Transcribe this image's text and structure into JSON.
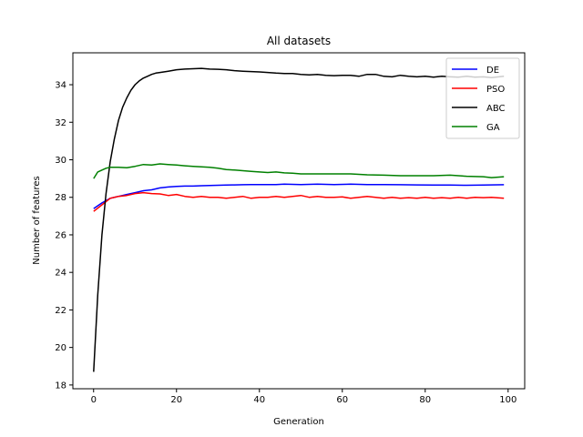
{
  "chart_data": {
    "type": "line",
    "title": "All datasets",
    "xlabel": "Generation",
    "ylabel": "Number of features",
    "xlim": [
      -5,
      104
    ],
    "ylim": [
      17.8,
      35.7
    ],
    "xticks": [
      0,
      20,
      40,
      60,
      80,
      100
    ],
    "yticks": [
      18,
      20,
      22,
      24,
      26,
      28,
      30,
      32,
      34
    ],
    "grid": false,
    "legend": "top-right",
    "series": [
      {
        "name": "DE",
        "color": "#0000ff",
        "points": [
          [
            0,
            27.4
          ],
          [
            2,
            27.7
          ],
          [
            4,
            27.95
          ],
          [
            6,
            28.05
          ],
          [
            8,
            28.15
          ],
          [
            10,
            28.25
          ],
          [
            12,
            28.35
          ],
          [
            14,
            28.4
          ],
          [
            16,
            28.5
          ],
          [
            18,
            28.55
          ],
          [
            20,
            28.58
          ],
          [
            22,
            28.6
          ],
          [
            24,
            28.6
          ],
          [
            26,
            28.62
          ],
          [
            28,
            28.63
          ],
          [
            30,
            28.64
          ],
          [
            32,
            28.65
          ],
          [
            34,
            28.66
          ],
          [
            36,
            28.67
          ],
          [
            38,
            28.68
          ],
          [
            40,
            28.68
          ],
          [
            44,
            28.68
          ],
          [
            46,
            28.7
          ],
          [
            50,
            28.68
          ],
          [
            54,
            28.7
          ],
          [
            58,
            28.68
          ],
          [
            62,
            28.7
          ],
          [
            66,
            28.68
          ],
          [
            70,
            28.68
          ],
          [
            74,
            28.67
          ],
          [
            78,
            28.66
          ],
          [
            82,
            28.65
          ],
          [
            86,
            28.65
          ],
          [
            90,
            28.64
          ],
          [
            94,
            28.65
          ],
          [
            99,
            28.67
          ]
        ]
      },
      {
        "name": "PSO",
        "color": "#ff0000",
        "points": [
          [
            0,
            27.25
          ],
          [
            2,
            27.6
          ],
          [
            4,
            27.95
          ],
          [
            6,
            28.05
          ],
          [
            8,
            28.1
          ],
          [
            10,
            28.2
          ],
          [
            12,
            28.25
          ],
          [
            14,
            28.2
          ],
          [
            16,
            28.18
          ],
          [
            18,
            28.1
          ],
          [
            20,
            28.15
          ],
          [
            22,
            28.05
          ],
          [
            24,
            28.0
          ],
          [
            26,
            28.05
          ],
          [
            28,
            28.0
          ],
          [
            30,
            28.0
          ],
          [
            32,
            27.95
          ],
          [
            34,
            28.0
          ],
          [
            36,
            28.05
          ],
          [
            38,
            27.95
          ],
          [
            40,
            28.0
          ],
          [
            42,
            28.0
          ],
          [
            44,
            28.05
          ],
          [
            46,
            28.0
          ],
          [
            48,
            28.05
          ],
          [
            50,
            28.1
          ],
          [
            52,
            28.0
          ],
          [
            54,
            28.05
          ],
          [
            56,
            28.0
          ],
          [
            58,
            28.0
          ],
          [
            60,
            28.02
          ],
          [
            62,
            27.95
          ],
          [
            64,
            28.0
          ],
          [
            66,
            28.05
          ],
          [
            68,
            28.0
          ],
          [
            70,
            27.95
          ],
          [
            72,
            28.0
          ],
          [
            74,
            27.95
          ],
          [
            76,
            27.98
          ],
          [
            78,
            27.95
          ],
          [
            80,
            28.0
          ],
          [
            82,
            27.95
          ],
          [
            84,
            27.98
          ],
          [
            86,
            27.95
          ],
          [
            88,
            28.0
          ],
          [
            90,
            27.95
          ],
          [
            92,
            28.0
          ],
          [
            94,
            27.98
          ],
          [
            96,
            28.0
          ],
          [
            99,
            27.95
          ]
        ]
      },
      {
        "name": "ABC",
        "color": "#000000",
        "points": [
          [
            0,
            18.7
          ],
          [
            1,
            22.8
          ],
          [
            2,
            26.0
          ],
          [
            3,
            28.2
          ],
          [
            4,
            29.9
          ],
          [
            5,
            31.1
          ],
          [
            6,
            32.1
          ],
          [
            7,
            32.8
          ],
          [
            8,
            33.3
          ],
          [
            9,
            33.7
          ],
          [
            10,
            34.0
          ],
          [
            11,
            34.2
          ],
          [
            12,
            34.35
          ],
          [
            13,
            34.45
          ],
          [
            14,
            34.55
          ],
          [
            15,
            34.62
          ],
          [
            16,
            34.65
          ],
          [
            18,
            34.72
          ],
          [
            20,
            34.8
          ],
          [
            22,
            34.83
          ],
          [
            24,
            34.85
          ],
          [
            26,
            34.87
          ],
          [
            28,
            34.83
          ],
          [
            30,
            34.82
          ],
          [
            32,
            34.8
          ],
          [
            34,
            34.75
          ],
          [
            36,
            34.72
          ],
          [
            38,
            34.7
          ],
          [
            40,
            34.68
          ],
          [
            42,
            34.65
          ],
          [
            44,
            34.62
          ],
          [
            46,
            34.6
          ],
          [
            48,
            34.6
          ],
          [
            50,
            34.55
          ],
          [
            52,
            34.52
          ],
          [
            54,
            34.55
          ],
          [
            56,
            34.5
          ],
          [
            58,
            34.48
          ],
          [
            60,
            34.5
          ],
          [
            62,
            34.5
          ],
          [
            64,
            34.45
          ],
          [
            66,
            34.55
          ],
          [
            68,
            34.55
          ],
          [
            70,
            34.45
          ],
          [
            72,
            34.42
          ],
          [
            74,
            34.5
          ],
          [
            76,
            34.45
          ],
          [
            78,
            34.42
          ],
          [
            80,
            34.45
          ],
          [
            82,
            34.4
          ],
          [
            84,
            34.45
          ],
          [
            86,
            34.42
          ],
          [
            88,
            34.4
          ],
          [
            90,
            34.45
          ],
          [
            92,
            34.4
          ],
          [
            94,
            34.42
          ],
          [
            96,
            34.38
          ],
          [
            99,
            34.45
          ]
        ]
      },
      {
        "name": "GA",
        "color": "#008000",
        "points": [
          [
            0,
            29.0
          ],
          [
            1,
            29.35
          ],
          [
            2,
            29.45
          ],
          [
            3,
            29.55
          ],
          [
            4,
            29.6
          ],
          [
            6,
            29.6
          ],
          [
            8,
            29.58
          ],
          [
            10,
            29.65
          ],
          [
            12,
            29.75
          ],
          [
            14,
            29.72
          ],
          [
            16,
            29.78
          ],
          [
            18,
            29.75
          ],
          [
            20,
            29.72
          ],
          [
            22,
            29.68
          ],
          [
            24,
            29.65
          ],
          [
            26,
            29.62
          ],
          [
            28,
            29.6
          ],
          [
            30,
            29.55
          ],
          [
            32,
            29.48
          ],
          [
            34,
            29.45
          ],
          [
            36,
            29.42
          ],
          [
            38,
            29.38
          ],
          [
            40,
            29.35
          ],
          [
            42,
            29.32
          ],
          [
            44,
            29.35
          ],
          [
            46,
            29.3
          ],
          [
            48,
            29.28
          ],
          [
            50,
            29.25
          ],
          [
            54,
            29.25
          ],
          [
            58,
            29.25
          ],
          [
            62,
            29.25
          ],
          [
            66,
            29.2
          ],
          [
            70,
            29.18
          ],
          [
            74,
            29.15
          ],
          [
            78,
            29.15
          ],
          [
            82,
            29.15
          ],
          [
            86,
            29.18
          ],
          [
            90,
            29.12
          ],
          [
            94,
            29.1
          ],
          [
            96,
            29.05
          ],
          [
            99,
            29.1
          ]
        ]
      }
    ]
  }
}
